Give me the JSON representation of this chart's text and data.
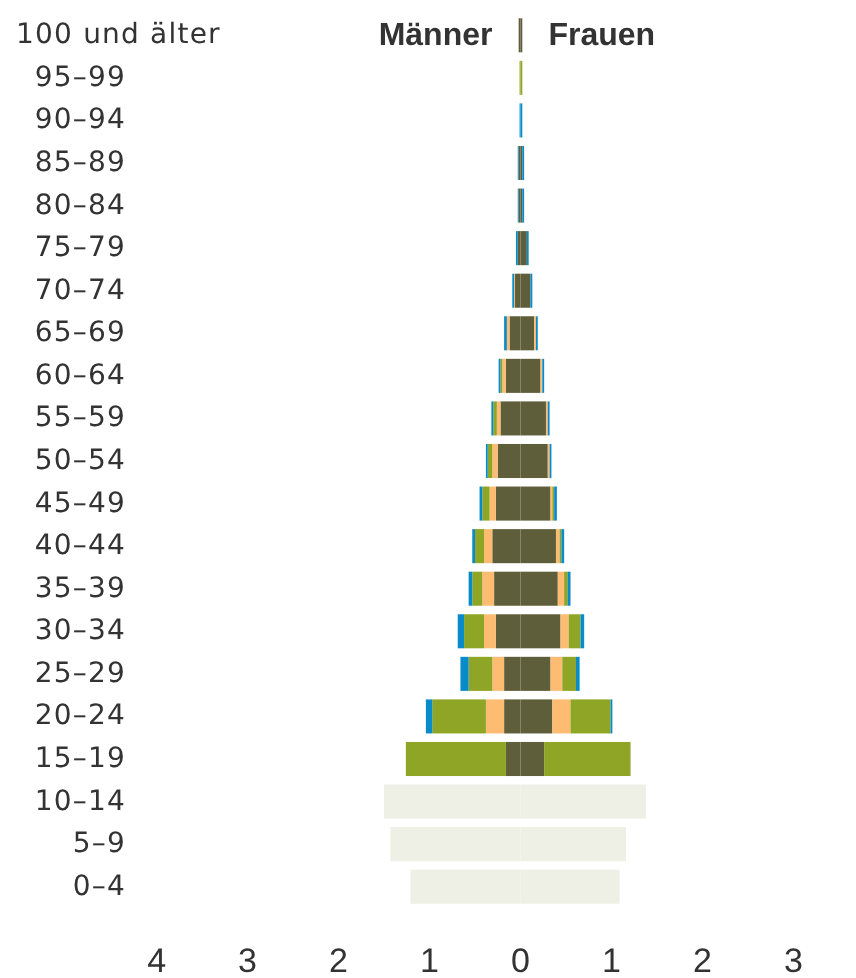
{
  "chart_data": {
    "type": "bar",
    "orientation": "horizontal",
    "stacked": true,
    "categories": [
      "100 und älter",
      "95–99",
      "90–94",
      "85–89",
      "80–84",
      "75–79",
      "70–74",
      "65–69",
      "60–64",
      "55–59",
      "50–54",
      "45–49",
      "40–44",
      "35–39",
      "30–34",
      "25–29",
      "20–24",
      "15–19",
      "10–14",
      "5–9",
      "0–4"
    ],
    "series": [
      {
        "color": "#5f5e3b",
        "values": [
          -0.02,
          null,
          null,
          -0.02,
          -0.02,
          -0.03,
          -0.06,
          -0.12,
          -0.16,
          -0.22,
          -0.25,
          -0.27,
          -0.31,
          -0.29,
          -0.27,
          -0.18,
          -0.18,
          -0.16,
          null,
          null,
          null
        ]
      },
      {
        "color": "#fdbc72",
        "values": [
          null,
          null,
          null,
          null,
          null,
          null,
          -0.01,
          -0.03,
          -0.04,
          -0.04,
          -0.06,
          -0.07,
          -0.09,
          -0.13,
          -0.13,
          -0.13,
          -0.2,
          null,
          null,
          null,
          null
        ]
      },
      {
        "color": "#8fa526",
        "values": [
          null,
          -0.01,
          null,
          null,
          null,
          null,
          null,
          null,
          -0.02,
          -0.04,
          -0.05,
          -0.08,
          -0.1,
          -0.11,
          -0.22,
          -0.26,
          -0.59,
          -1.1,
          null,
          null,
          null
        ]
      },
      {
        "color": "#0a8bc9",
        "values": [
          null,
          null,
          -0.01,
          -0.01,
          -0.01,
          -0.02,
          -0.02,
          -0.03,
          -0.02,
          -0.02,
          -0.02,
          -0.03,
          -0.03,
          -0.04,
          -0.07,
          -0.09,
          -0.07,
          null,
          null,
          null,
          null
        ]
      },
      {
        "color": "#eef0e6",
        "values": [
          null,
          null,
          null,
          null,
          null,
          null,
          null,
          null,
          null,
          null,
          null,
          null,
          null,
          null,
          null,
          null,
          null,
          null,
          -1.5,
          -1.43,
          -1.21
        ]
      },
      {
        "color": "#5f5e3b",
        "values": [
          0.02,
          null,
          null,
          0.02,
          0.02,
          0.07,
          0.11,
          0.15,
          0.22,
          0.28,
          0.3,
          0.33,
          0.39,
          0.41,
          0.44,
          0.33,
          0.35,
          0.26,
          null,
          null,
          null
        ]
      },
      {
        "color": "#fdbc72",
        "values": [
          null,
          null,
          null,
          null,
          null,
          null,
          null,
          0.02,
          0.02,
          0.02,
          0.02,
          0.02,
          0.04,
          0.07,
          0.09,
          0.13,
          0.2,
          null,
          null,
          null,
          null
        ]
      },
      {
        "color": "#8fa526",
        "values": [
          null,
          0.02,
          null,
          null,
          null,
          null,
          null,
          null,
          null,
          null,
          null,
          0.02,
          0.02,
          0.04,
          0.13,
          0.15,
          0.44,
          0.95,
          null,
          null,
          null
        ]
      },
      {
        "color": "#0a8bc9",
        "values": [
          null,
          null,
          0.02,
          0.02,
          0.02,
          0.02,
          0.02,
          0.02,
          0.02,
          0.02,
          0.02,
          0.03,
          0.03,
          0.03,
          0.04,
          0.04,
          0.02,
          null,
          null,
          null,
          null
        ]
      },
      {
        "color": "#eef0e6",
        "values": [
          null,
          null,
          null,
          null,
          null,
          null,
          null,
          null,
          null,
          null,
          null,
          null,
          null,
          null,
          null,
          null,
          null,
          null,
          1.38,
          1.16,
          1.09
        ]
      }
    ],
    "xlim": [
      -4,
      3
    ],
    "xticks": [
      {
        "value": -4,
        "label": "4"
      },
      {
        "value": -3,
        "label": "3"
      },
      {
        "value": -2,
        "label": "2"
      },
      {
        "value": -1,
        "label": "1"
      },
      0,
      1,
      2,
      3
    ],
    "annotations": [
      "Männer",
      "Frauen"
    ]
  }
}
